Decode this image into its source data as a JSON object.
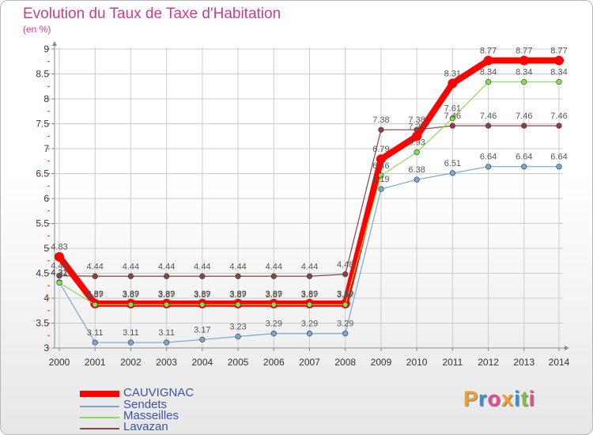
{
  "chart_data": {
    "type": "line",
    "title": "Evolution du Taux de Taxe d'Habitation",
    "subtitle": "(en %)",
    "xlabel": "",
    "ylabel": "",
    "x": [
      "2000",
      "2001",
      "2002",
      "2003",
      "2004",
      "2005",
      "2006",
      "2007",
      "2008",
      "2009",
      "2010",
      "2011",
      "2012",
      "2013",
      "2014"
    ],
    "ylim": [
      3,
      9
    ],
    "yticks": [
      "3",
      "3.5",
      "4",
      "4.5",
      "5",
      "5.5",
      "6",
      "6.5",
      "7",
      "7.5",
      "8",
      "8.5",
      "9"
    ],
    "grid": true,
    "legend_position": "bottom-left",
    "series": [
      {
        "name": "CAUVIGNAC",
        "color": "#ff0000",
        "values": [
          4.83,
          3.89,
          3.89,
          3.89,
          3.89,
          3.89,
          3.89,
          3.89,
          3.89,
          6.79,
          7.25,
          8.31,
          8.77,
          8.77,
          8.77
        ],
        "labels": [
          "4.83",
          "3.89",
          "3.89",
          "3.89",
          "3.89",
          "3.89",
          "3.89",
          "3.89",
          "3.89",
          "6.79",
          "7.25",
          "8.31",
          "8.77",
          "8.77",
          "8.77"
        ]
      },
      {
        "name": "Sendets",
        "color": "#78a8d0",
        "values": [
          4.32,
          3.11,
          3.11,
          3.11,
          3.17,
          3.23,
          3.29,
          3.29,
          3.29,
          6.19,
          6.38,
          6.51,
          6.64,
          6.64,
          6.64
        ],
        "labels": [
          "4.32",
          "3.11",
          "3.11",
          "3.11",
          "3.17",
          "3.23",
          "3.29",
          "3.29",
          "3.29",
          "6.19",
          "6.38",
          "6.51",
          "6.64",
          "6.64",
          "6.64"
        ]
      },
      {
        "name": "Masseilles",
        "color": "#88dd55",
        "values": [
          4.31,
          3.87,
          3.87,
          3.87,
          3.87,
          3.87,
          3.87,
          3.87,
          3.87,
          6.46,
          6.93,
          7.61,
          8.34,
          8.34,
          8.34
        ],
        "labels": [
          "4.31",
          "3.87",
          "3.87",
          "3.87",
          "3.87",
          "3.87",
          "3.87",
          "3.87",
          "3.87",
          "6.46",
          "6.93",
          "7.61",
          "8.34",
          "8.34",
          "8.34"
        ]
      },
      {
        "name": "Lavazan",
        "color": "#884444",
        "values": [
          4.45,
          4.44,
          4.44,
          4.44,
          4.44,
          4.44,
          4.44,
          4.44,
          4.48,
          7.38,
          7.38,
          7.46,
          7.46,
          7.46,
          7.46
        ],
        "labels": [
          "4.45",
          "4.44",
          "4.44",
          "4.44",
          "4.44",
          "4.44",
          "4.44",
          "4.44",
          "4.48",
          "7.38",
          "7.38",
          "7.46",
          "7.46",
          "7.46",
          "7.46"
        ]
      }
    ]
  },
  "logo": {
    "letters": [
      "P",
      "r",
      "o",
      "x",
      "i",
      "t",
      "i"
    ],
    "colors": [
      "#f0a030",
      "#3a8fd0",
      "#e84a90",
      "#f0a030",
      "#3a8fd0",
      "#7cc242",
      "#e84a90"
    ]
  }
}
